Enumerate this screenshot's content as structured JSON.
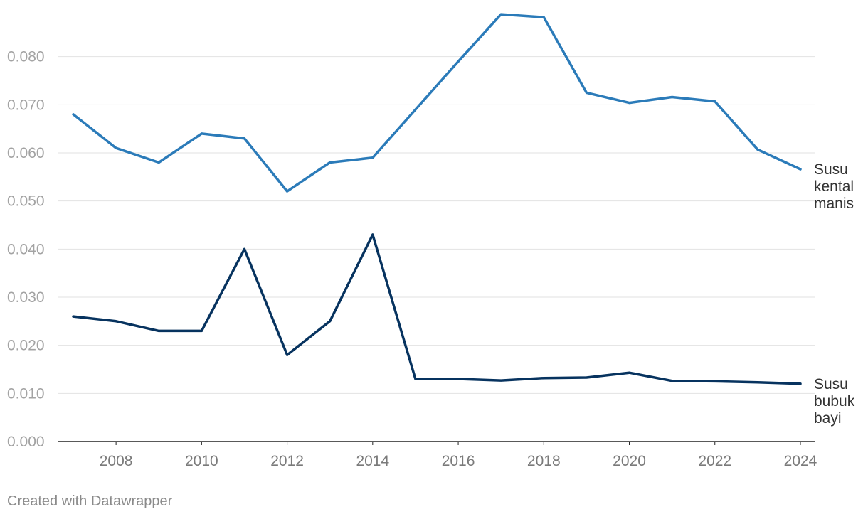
{
  "chart_data": {
    "type": "line",
    "x": [
      2007,
      2008,
      2009,
      2010,
      2011,
      2012,
      2013,
      2014,
      2015,
      2016,
      2017,
      2018,
      2019,
      2020,
      2021,
      2022,
      2023,
      2024
    ],
    "series": [
      {
        "name": "Susu kental manis",
        "label_lines": [
          "Susu",
          "kental",
          "manis"
        ],
        "color": "#2b7bb9",
        "values": [
          0.068,
          0.061,
          0.058,
          0.064,
          0.063,
          0.052,
          0.058,
          0.059,
          0.069,
          0.079,
          0.0888,
          0.0882,
          0.0725,
          0.0704,
          0.0716,
          0.0707,
          0.0607,
          0.0566
        ]
      },
      {
        "name": "Susu bubuk bayi",
        "label_lines": [
          "Susu",
          "bubuk",
          "bayi"
        ],
        "color": "#07335f",
        "values": [
          0.026,
          0.025,
          0.023,
          0.023,
          0.04,
          0.018,
          0.025,
          0.043,
          0.013,
          0.013,
          0.0127,
          0.0132,
          0.0133,
          0.0143,
          0.0126,
          0.0125,
          0.0123,
          0.012
        ]
      }
    ],
    "ylim": [
      0,
      0.09
    ],
    "xlim": [
      2006.75,
      2024.2
    ],
    "yticks": [
      "0.000",
      "0.010",
      "0.020",
      "0.030",
      "0.040",
      "0.050",
      "0.060",
      "0.070",
      "0.080"
    ],
    "xticks": [
      "2008",
      "2010",
      "2012",
      "2014",
      "2016",
      "2018",
      "2020",
      "2022",
      "2024"
    ],
    "grid": true,
    "title": "",
    "xlabel": "",
    "ylabel": ""
  },
  "footer": {
    "credit": "Created with Datawrapper"
  }
}
